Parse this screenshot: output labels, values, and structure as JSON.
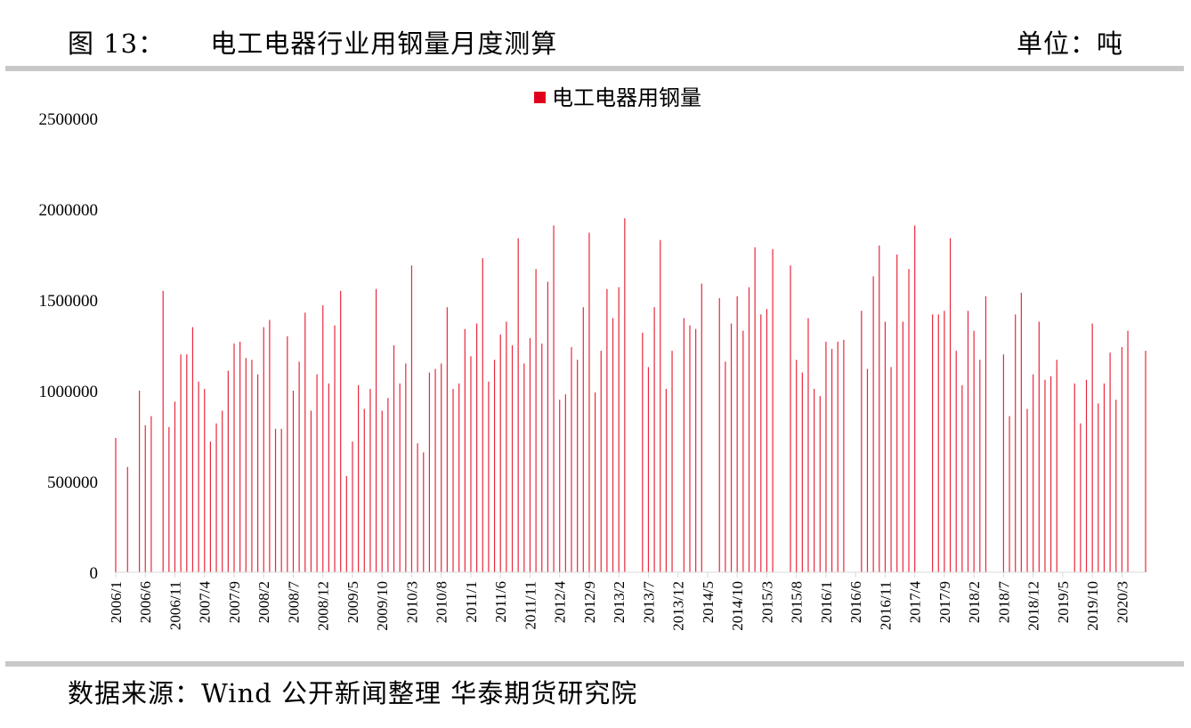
{
  "header": {
    "title": "图 13：     电工电器行业用钢量月度测算",
    "unit": "单位：吨"
  },
  "footer": {
    "source": "数据来源：Wind  公开新闻整理  华泰期货研究院"
  },
  "colors": {
    "bar": "#e8283c",
    "legend_swatch": "#e0001b",
    "rule": "#c8c8c8"
  },
  "chart_data": {
    "type": "bar",
    "title": "",
    "xlabel": "",
    "ylabel": "",
    "ylim": [
      0,
      2500000
    ],
    "yticks": [
      0,
      500000,
      1000000,
      1500000,
      2000000,
      2500000
    ],
    "ytick_labels": [
      "0",
      "500000",
      "1000000",
      "1500000",
      "2000000",
      "2500000"
    ],
    "legend": {
      "position": "top-center",
      "entries": [
        "电工电器用钢量"
      ]
    },
    "x_tick_labels": [
      "2006/1",
      "2006/6",
      "2006/11",
      "2007/4",
      "2007/9",
      "2008/2",
      "2008/7",
      "2008/12",
      "2009/5",
      "2009/10",
      "2010/3",
      "2010/8",
      "2011/1",
      "2011/6",
      "2011/11",
      "2012/4",
      "2012/9",
      "2013/2",
      "2013/7",
      "2013/12",
      "2014/5",
      "2014/10",
      "2015/3",
      "2015/8",
      "2016/1",
      "2016/6",
      "2016/11",
      "2017/4",
      "2017/9",
      "2018/2",
      "2018/7",
      "2018/12",
      "2019/5",
      "2019/10",
      "2020/3"
    ],
    "series": [
      {
        "name": "电工电器用钢量",
        "x_start": "2006/1",
        "x_end": "2020/3",
        "values": [
          740000,
          0,
          580000,
          0,
          1000000,
          810000,
          860000,
          0,
          1550000,
          800000,
          940000,
          1200000,
          1200000,
          1350000,
          1050000,
          1010000,
          720000,
          820000,
          890000,
          1110000,
          1260000,
          1270000,
          1180000,
          1170000,
          1090000,
          1350000,
          1390000,
          790000,
          790000,
          1300000,
          1000000,
          1160000,
          1430000,
          890000,
          1090000,
          1470000,
          1040000,
          1360000,
          1550000,
          530000,
          720000,
          1030000,
          900000,
          1010000,
          1560000,
          890000,
          960000,
          1250000,
          1040000,
          1150000,
          1690000,
          710000,
          660000,
          1100000,
          1120000,
          1150000,
          1460000,
          1010000,
          1040000,
          1340000,
          1190000,
          1370000,
          1730000,
          1050000,
          1170000,
          1310000,
          1380000,
          1250000,
          1840000,
          1150000,
          1290000,
          1670000,
          1260000,
          1600000,
          1910000,
          950000,
          980000,
          1240000,
          1170000,
          1460000,
          1870000,
          990000,
          1220000,
          1560000,
          1400000,
          1570000,
          1950000,
          0,
          0,
          1320000,
          1130000,
          1460000,
          1830000,
          1010000,
          1220000,
          0,
          1400000,
          1360000,
          1340000,
          1590000,
          0,
          0,
          1510000,
          1160000,
          1370000,
          1520000,
          1330000,
          1570000,
          1790000,
          1420000,
          1450000,
          1780000,
          0,
          0,
          1690000,
          1170000,
          1100000,
          1400000,
          1010000,
          970000,
          1270000,
          1230000,
          1270000,
          1280000,
          0,
          0,
          1440000,
          1120000,
          1630000,
          1800000,
          1380000,
          1130000,
          1750000,
          1380000,
          1670000,
          1910000,
          0,
          0,
          1420000,
          1420000,
          1440000,
          1840000,
          1220000,
          1030000,
          1440000,
          1330000,
          1170000,
          1520000,
          0,
          0,
          1200000,
          860000,
          1420000,
          1540000,
          900000,
          1090000,
          1380000,
          1060000,
          1080000,
          1170000,
          0,
          0,
          1040000,
          820000,
          1060000,
          1370000,
          930000,
          1040000,
          1210000,
          950000,
          1240000,
          1330000,
          0,
          0,
          1220000
        ]
      }
    ]
  }
}
